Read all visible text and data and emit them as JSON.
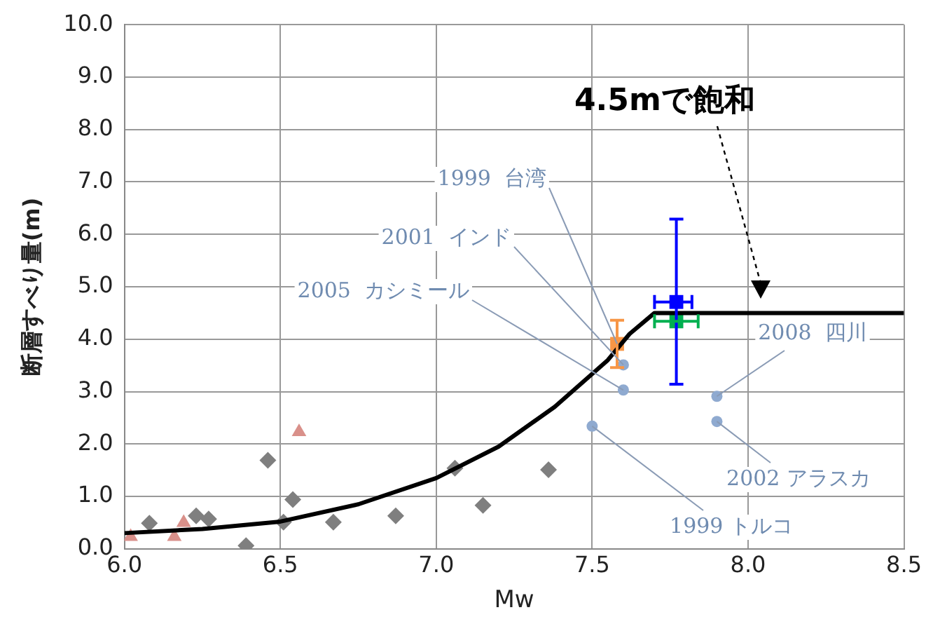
{
  "chart_data": {
    "type": "scatter",
    "xlabel": "Mw",
    "ylabel": "断層すべり量(m)",
    "xlim": [
      6.0,
      8.5
    ],
    "xticks": [
      {
        "value": 6.0,
        "label": "6.0"
      },
      {
        "value": 6.5,
        "label": "6.5"
      },
      {
        "value": 7.0,
        "label": "7.0"
      },
      {
        "value": 7.5,
        "label": "7.5"
      },
      {
        "value": 8.0,
        "label": "8.0"
      },
      {
        "value": 8.5,
        "label": "8.5"
      }
    ],
    "ylim": [
      0,
      10
    ],
    "yticks": [
      {
        "value": 0,
        "label": "0.0"
      },
      {
        "value": 1,
        "label": "1.0"
      },
      {
        "value": 2,
        "label": "2.0"
      },
      {
        "value": 3,
        "label": "3.0"
      },
      {
        "value": 4,
        "label": "4.0"
      },
      {
        "value": 5,
        "label": "5.0"
      },
      {
        "value": 6,
        "label": "6.0"
      },
      {
        "value": 7,
        "label": "7.0"
      },
      {
        "value": 8,
        "label": "8.0"
      },
      {
        "value": 9,
        "label": "9.0"
      },
      {
        "value": 10,
        "label": "10.0"
      }
    ],
    "grid": true,
    "legend": false,
    "series": [
      {
        "type": "line",
        "marker": "none",
        "color": "#000000",
        "x": [
          6.0,
          6.25,
          6.5,
          6.75,
          7.0,
          7.2,
          7.38,
          7.55,
          7.62,
          7.7,
          8.5
        ],
        "values": [
          0.3,
          0.38,
          0.52,
          0.85,
          1.35,
          1.95,
          2.71,
          3.6,
          4.1,
          4.5,
          4.5
        ]
      },
      {
        "marker": "diamond",
        "color": "#7f7f7f",
        "x": [
          6.08,
          6.23,
          6.27,
          6.46,
          6.39,
          6.51,
          6.54,
          6.67,
          6.87,
          7.06,
          7.15,
          7.36
        ],
        "values": [
          0.49,
          0.63,
          0.57,
          1.69,
          0.06,
          0.51,
          0.94,
          0.51,
          0.63,
          1.54,
          0.83,
          1.51
        ]
      },
      {
        "marker": "triangle",
        "color": "#d9908a",
        "x": [
          6.02,
          6.16,
          6.19,
          6.56
        ],
        "values": [
          0.23,
          0.23,
          0.5,
          2.23
        ]
      },
      {
        "marker": "circle",
        "color": "#8faad0",
        "x": [
          7.6,
          7.6,
          7.5,
          7.9,
          7.9
        ],
        "values": [
          3.51,
          3.03,
          2.34,
          2.91,
          2.43
        ]
      },
      {
        "marker": "square",
        "color": "#f79646",
        "x": [
          7.58
        ],
        "values": [
          3.91
        ],
        "errors": [
          0.45
        ]
      },
      {
        "marker": "square",
        "color": "#0000ff",
        "x": [
          7.77
        ],
        "values": [
          4.71
        ],
        "errors": [
          [
            3.14,
            6.29
          ]
        ],
        "xerrors": [
          [
            7.7,
            7.82
          ]
        ]
      },
      {
        "marker": "square",
        "color": "#00b050",
        "x": [
          7.77
        ],
        "values": [
          4.34
        ],
        "xerrors": [
          [
            7.7,
            7.84
          ]
        ]
      }
    ],
    "annotations": [
      {
        "text": "1999  台湾",
        "x": 7.58,
        "y": 3.91
      },
      {
        "text": "2001  インド",
        "x": 7.6,
        "y": 3.51
      },
      {
        "text": "2005  カシミール",
        "x": 7.6,
        "y": 3.03
      },
      {
        "text": "2008  四川",
        "x": 7.9,
        "y": 2.91
      },
      {
        "text": "2002 アラスカ",
        "x": 7.9,
        "y": 2.43
      },
      {
        "text": "1999 トルコ",
        "x": 7.5,
        "y": 2.34
      },
      "4.5mで飽和"
    ]
  }
}
